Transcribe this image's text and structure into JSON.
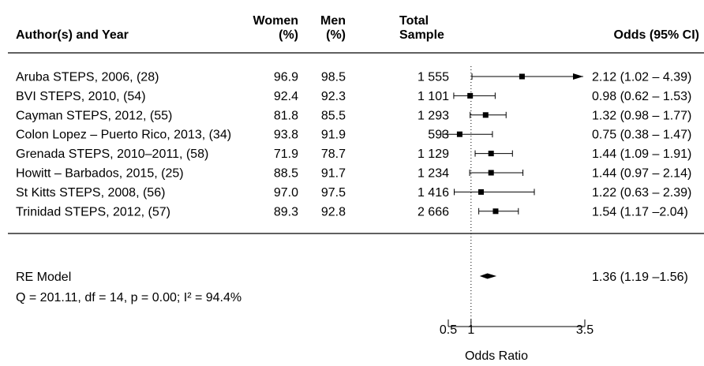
{
  "chart_data": {
    "type": "forest",
    "columns": {
      "study": "Author(s) and Year",
      "women": [
        "Women",
        "(%)"
      ],
      "men": [
        "Men",
        "(%)"
      ],
      "total": [
        "Total",
        "Sample"
      ],
      "odds": "Odds (95% CI)"
    },
    "rows": [
      {
        "study": "Aruba STEPS, 2006, (28)",
        "women": "96.9",
        "men": "98.5",
        "total": "1 555",
        "or": 2.12,
        "lo": 1.02,
        "hi": 4.39,
        "label": "2.12 (1.02 – 4.39)"
      },
      {
        "study": "BVI STEPS, 2010, (54)",
        "women": "92.4",
        "men": "92.3",
        "total": "1 101",
        "or": 0.98,
        "lo": 0.62,
        "hi": 1.53,
        "label": "0.98 (0.62 – 1.53)"
      },
      {
        "study": "Cayman STEPS, 2012, (55)",
        "women": "81.8",
        "men": "85.5",
        "total": "1 293",
        "or": 1.32,
        "lo": 0.98,
        "hi": 1.77,
        "label": "1.32 (0.98 – 1.77)"
      },
      {
        "study": "Colon Lopez – Puerto Rico, 2013, (34)",
        "women": "93.8",
        "men": "91.9",
        "total": "593",
        "or": 0.75,
        "lo": 0.38,
        "hi": 1.47,
        "label": "0.75 (0.38 – 1.47)"
      },
      {
        "study": "Grenada STEPS, 2010–2011, (58)",
        "women": "71.9",
        "men": "78.7",
        "total": "1 129",
        "or": 1.44,
        "lo": 1.09,
        "hi": 1.91,
        "label": "1.44 (1.09 – 1.91)"
      },
      {
        "study": "Howitt – Barbados, 2015, (25)",
        "women": "88.5",
        "men": "91.7",
        "total": "1 234",
        "or": 1.44,
        "lo": 0.97,
        "hi": 2.14,
        "label": "1.44 (0.97 – 2.14)"
      },
      {
        "study": "St Kitts STEPS, 2008, (56)",
        "women": "97.0",
        "men": "97.5",
        "total": "1 416",
        "or": 1.22,
        "lo": 0.63,
        "hi": 2.39,
        "label": "1.22 (0.63 – 2.39)"
      },
      {
        "study": "Trinidad STEPS, 2012, (57)",
        "women": "89.3",
        "men": "92.8",
        "total": "2 666",
        "or": 1.54,
        "lo": 1.17,
        "hi": 2.04,
        "label": "1.54 (1.17 –2.04)"
      }
    ],
    "summary": {
      "label": "RE Model",
      "or": 1.36,
      "lo": 1.19,
      "hi": 1.56,
      "ci_label": "1.36 (1.19 –1.56)",
      "stats": "Q = 201.11, df = 14, p = 0.00; I² = 94.4%"
    },
    "x_axis": {
      "label": "Odds Ratio",
      "ticks": [
        {
          "value": 0.5,
          "label": "0.5"
        },
        {
          "value": 1,
          "label": "1"
        },
        {
          "value": 3.5,
          "label": "3.5"
        }
      ],
      "range": [
        0.5,
        3.5
      ],
      "reference_line": 1,
      "reference_style": "dotted"
    }
  }
}
